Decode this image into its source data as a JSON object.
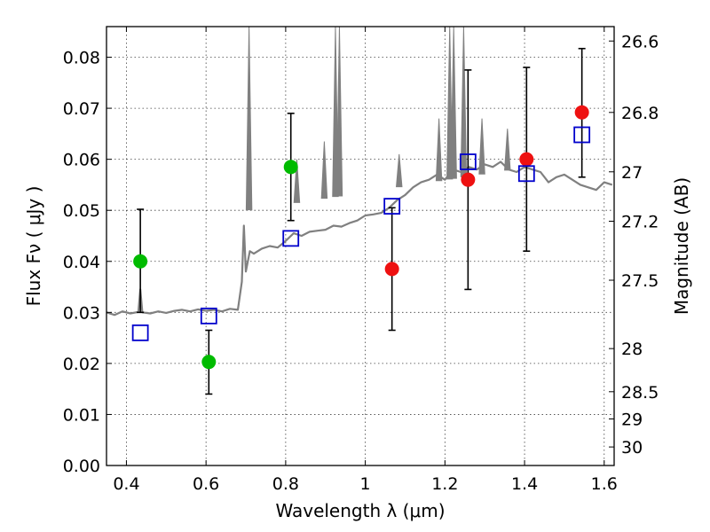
{
  "chart_data": {
    "type": "scatter",
    "title": "",
    "xlabel": "Wavelength  λ (μm)",
    "ylabel": "Flux  Fν  ( μJy )",
    "y2label": "Magnitude (AB)",
    "xlim": [
      0.35,
      1.625
    ],
    "ylim": [
      0.0,
      0.086
    ],
    "grid": true,
    "x_ticks": [
      {
        "value": 0.4,
        "label": "0.4"
      },
      {
        "value": 0.6,
        "label": "0.6"
      },
      {
        "value": 0.8,
        "label": "0.8"
      },
      {
        "value": 1.0,
        "label": "1"
      },
      {
        "value": 1.2,
        "label": "1.2"
      },
      {
        "value": 1.4,
        "label": "1.4"
      },
      {
        "value": 1.6,
        "label": "1.6"
      }
    ],
    "y_ticks": [
      {
        "value": 0.0,
        "label": "0.00"
      },
      {
        "value": 0.01,
        "label": "0.01"
      },
      {
        "value": 0.02,
        "label": "0.02"
      },
      {
        "value": 0.03,
        "label": "0.03"
      },
      {
        "value": 0.04,
        "label": "0.04"
      },
      {
        "value": 0.05,
        "label": "0.05"
      },
      {
        "value": 0.06,
        "label": "0.06"
      },
      {
        "value": 0.07,
        "label": "0.07"
      },
      {
        "value": 0.08,
        "label": "0.08"
      }
    ],
    "y2_ticks": [
      {
        "mag": 26.6,
        "label": "26.6"
      },
      {
        "mag": 26.8,
        "label": "26.8"
      },
      {
        "mag": 27.0,
        "label": "27"
      },
      {
        "mag": 27.2,
        "label": "27.2"
      },
      {
        "mag": 27.5,
        "label": "27.5"
      },
      {
        "mag": 28.0,
        "label": "28"
      },
      {
        "mag": 28.5,
        "label": "28.5"
      },
      {
        "mag": 29.0,
        "label": "29"
      },
      {
        "mag": 30.0,
        "label": "30"
      }
    ],
    "series": [
      {
        "name": "model SED",
        "kind": "line",
        "color": "#808080",
        "x": [
          0.35,
          0.37,
          0.39,
          0.41,
          0.43,
          0.435,
          0.44,
          0.46,
          0.48,
          0.5,
          0.52,
          0.54,
          0.56,
          0.58,
          0.6,
          0.62,
          0.64,
          0.66,
          0.68,
          0.69,
          0.695,
          0.7,
          0.71,
          0.72,
          0.74,
          0.76,
          0.78,
          0.8,
          0.82,
          0.84,
          0.86,
          0.88,
          0.9,
          0.92,
          0.94,
          0.96,
          0.98,
          1.0,
          1.02,
          1.04,
          1.06,
          1.08,
          1.1,
          1.12,
          1.14,
          1.16,
          1.18,
          1.2,
          1.22,
          1.24,
          1.26,
          1.28,
          1.3,
          1.32,
          1.34,
          1.36,
          1.38,
          1.4,
          1.42,
          1.44,
          1.46,
          1.48,
          1.5,
          1.52,
          1.54,
          1.56,
          1.58,
          1.6,
          1.62
        ],
        "y": [
          0.03,
          0.0295,
          0.0302,
          0.0298,
          0.0301,
          0.0345,
          0.03,
          0.0298,
          0.0302,
          0.0299,
          0.0303,
          0.0305,
          0.0302,
          0.0306,
          0.0303,
          0.0305,
          0.0302,
          0.0307,
          0.0305,
          0.036,
          0.047,
          0.038,
          0.042,
          0.0415,
          0.0425,
          0.043,
          0.0427,
          0.044,
          0.0455,
          0.045,
          0.0458,
          0.046,
          0.0462,
          0.047,
          0.0468,
          0.0475,
          0.048,
          0.049,
          0.0492,
          0.0495,
          0.0505,
          0.052,
          0.053,
          0.0545,
          0.0555,
          0.056,
          0.057,
          0.056,
          0.058,
          0.0575,
          0.0585,
          0.058,
          0.059,
          0.0585,
          0.0595,
          0.058,
          0.0575,
          0.0585,
          0.058,
          0.0575,
          0.0555,
          0.0565,
          0.057,
          0.056,
          0.055,
          0.0545,
          0.054,
          0.0555,
          0.055
        ]
      },
      {
        "name": "model SED emission lines",
        "kind": "spikes",
        "color": "#808080",
        "x": [
          0.708,
          0.828,
          0.897,
          0.925,
          0.935,
          1.085,
          1.185,
          1.212,
          1.222,
          1.247,
          1.293,
          1.357
        ],
        "y": [
          0.086,
          0.06,
          0.0635,
          0.086,
          0.086,
          0.061,
          0.068,
          0.086,
          0.086,
          0.086,
          0.068,
          0.066
        ]
      },
      {
        "name": "observed (green)",
        "kind": "points",
        "color": "#00bb00",
        "x": [
          0.435,
          0.607,
          0.813
        ],
        "y": [
          0.04,
          0.0203,
          0.0585
        ],
        "err_low": [
          0.01,
          0.0063,
          0.0105
        ],
        "err_high": [
          0.0102,
          0.0062,
          0.0105
        ]
      },
      {
        "name": "observed (red)",
        "kind": "points",
        "color": "#ee1111",
        "x": [
          1.067,
          1.258,
          1.405,
          1.544
        ],
        "y": [
          0.0385,
          0.056,
          0.06,
          0.0692
        ],
        "err_low": [
          0.012,
          0.0215,
          0.018,
          0.0127
        ],
        "err_high": [
          0.012,
          0.0215,
          0.018,
          0.0125
        ]
      },
      {
        "name": "model photometry",
        "kind": "squares",
        "color": "#0000cc",
        "x": [
          0.435,
          0.607,
          0.813,
          1.067,
          1.258,
          1.405,
          1.544
        ],
        "y": [
          0.026,
          0.0293,
          0.0445,
          0.0508,
          0.0595,
          0.0572,
          0.0648
        ]
      }
    ]
  }
}
